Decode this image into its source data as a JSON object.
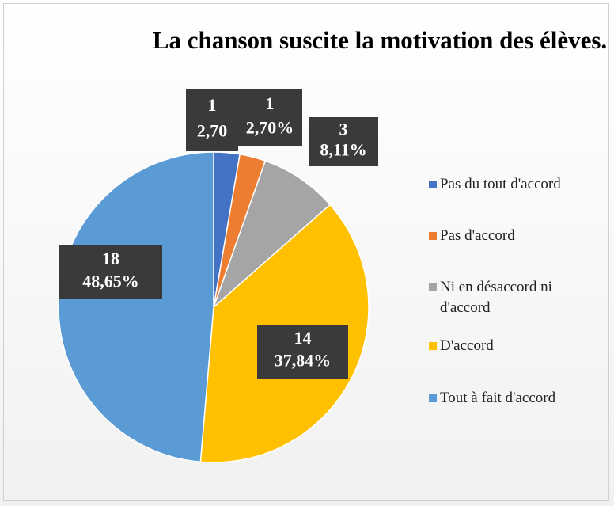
{
  "chart_data": {
    "type": "pie",
    "title": "La chanson suscite la motivation des élèves.",
    "categories": [
      "Pas du tout d'accord",
      "Pas d'accord",
      "Ni en désaccord ni d'accord",
      "D'accord",
      "Tout à fait d'accord"
    ],
    "values": [
      1,
      1,
      3,
      14,
      18
    ],
    "percent_labels": [
      "2,70",
      "2,70%",
      "8,11%",
      "37,84%",
      "48,65%"
    ],
    "colors": [
      "#4472c4",
      "#ed7d31",
      "#a5a5a5",
      "#ffc000",
      "#5b9bd5"
    ],
    "legend": "right"
  }
}
